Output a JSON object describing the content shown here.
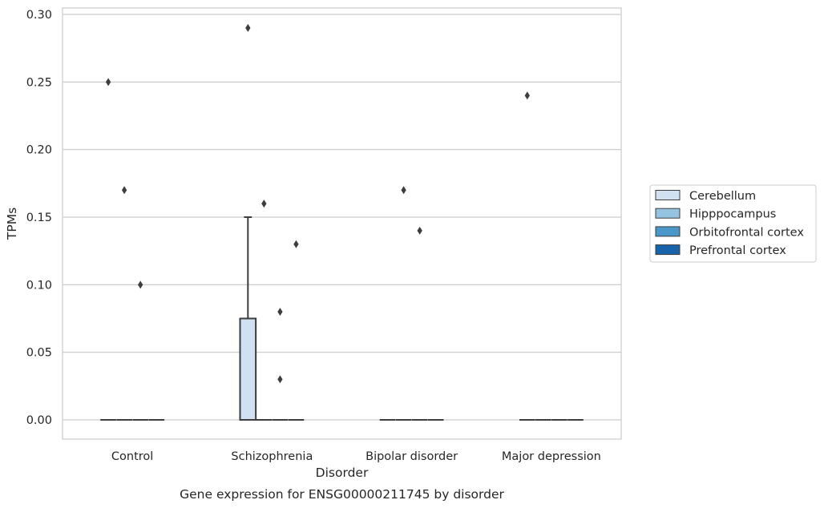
{
  "chart_data": {
    "type": "box",
    "xlabel": "Disorder",
    "ylabel": "TPMs",
    "caption": "Gene expression for ENSG00000211745 by disorder",
    "ylim": [
      -0.014,
      0.305
    ],
    "yticks": [
      0.0,
      0.05,
      0.1,
      0.15,
      0.2,
      0.25,
      0.3
    ],
    "ytick_labels": [
      "0.00",
      "0.05",
      "0.10",
      "0.15",
      "0.20",
      "0.25",
      "0.30"
    ],
    "grid": "horizontal",
    "legend_position": "outside-right",
    "categories": [
      "Control",
      "Schizophrenia",
      "Bipolar disorder",
      "Major depression"
    ],
    "series": [
      {
        "name": "Cerebellum",
        "color": "#d0e1f2",
        "boxes": [
          {
            "category": "Control",
            "q1": 0.0,
            "median": 0.0,
            "q3": 0.0,
            "whisker_low": 0.0,
            "whisker_high": 0.0,
            "outliers": [
              0.25
            ]
          },
          {
            "category": "Schizophrenia",
            "q1": 0.0,
            "median": 0.0,
            "q3": 0.075,
            "whisker_low": 0.0,
            "whisker_high": 0.15,
            "outliers": [
              0.29
            ]
          },
          {
            "category": "Bipolar disorder",
            "q1": 0.0,
            "median": 0.0,
            "q3": 0.0,
            "whisker_low": 0.0,
            "whisker_high": 0.0,
            "outliers": []
          },
          {
            "category": "Major depression",
            "q1": 0.0,
            "median": 0.0,
            "q3": 0.0,
            "whisker_low": 0.0,
            "whisker_high": 0.0,
            "outliers": [
              0.24
            ]
          }
        ]
      },
      {
        "name": "Hipppocampus",
        "color": "#94c4df",
        "boxes": [
          {
            "category": "Control",
            "q1": 0.0,
            "median": 0.0,
            "q3": 0.0,
            "whisker_low": 0.0,
            "whisker_high": 0.0,
            "outliers": [
              0.17
            ]
          },
          {
            "category": "Schizophrenia",
            "q1": 0.0,
            "median": 0.0,
            "q3": 0.0,
            "whisker_low": 0.0,
            "whisker_high": 0.0,
            "outliers": [
              0.16
            ]
          },
          {
            "category": "Bipolar disorder",
            "q1": 0.0,
            "median": 0.0,
            "q3": 0.0,
            "whisker_low": 0.0,
            "whisker_high": 0.0,
            "outliers": [
              0.17
            ]
          },
          {
            "category": "Major depression",
            "q1": 0.0,
            "median": 0.0,
            "q3": 0.0,
            "whisker_low": 0.0,
            "whisker_high": 0.0,
            "outliers": []
          }
        ]
      },
      {
        "name": "Orbitofrontal cortex",
        "color": "#4a98c9",
        "boxes": [
          {
            "category": "Control",
            "q1": 0.0,
            "median": 0.0,
            "q3": 0.0,
            "whisker_low": 0.0,
            "whisker_high": 0.0,
            "outliers": [
              0.1
            ]
          },
          {
            "category": "Schizophrenia",
            "q1": 0.0,
            "median": 0.0,
            "q3": 0.0,
            "whisker_low": 0.0,
            "whisker_high": 0.0,
            "outliers": [
              0.08,
              0.03
            ]
          },
          {
            "category": "Bipolar disorder",
            "q1": 0.0,
            "median": 0.0,
            "q3": 0.0,
            "whisker_low": 0.0,
            "whisker_high": 0.0,
            "outliers": [
              0.14
            ]
          },
          {
            "category": "Major depression",
            "q1": 0.0,
            "median": 0.0,
            "q3": 0.0,
            "whisker_low": 0.0,
            "whisker_high": 0.0,
            "outliers": []
          }
        ]
      },
      {
        "name": "Prefrontal cortex",
        "color": "#1764ab",
        "boxes": [
          {
            "category": "Control",
            "q1": 0.0,
            "median": 0.0,
            "q3": 0.0,
            "whisker_low": 0.0,
            "whisker_high": 0.0,
            "outliers": []
          },
          {
            "category": "Schizophrenia",
            "q1": 0.0,
            "median": 0.0,
            "q3": 0.0,
            "whisker_low": 0.0,
            "whisker_high": 0.0,
            "outliers": [
              0.13
            ]
          },
          {
            "category": "Bipolar disorder",
            "q1": 0.0,
            "median": 0.0,
            "q3": 0.0,
            "whisker_low": 0.0,
            "whisker_high": 0.0,
            "outliers": []
          },
          {
            "category": "Major depression",
            "q1": 0.0,
            "median": 0.0,
            "q3": 0.0,
            "whisker_low": 0.0,
            "whisker_high": 0.0,
            "outliers": []
          }
        ]
      }
    ]
  }
}
